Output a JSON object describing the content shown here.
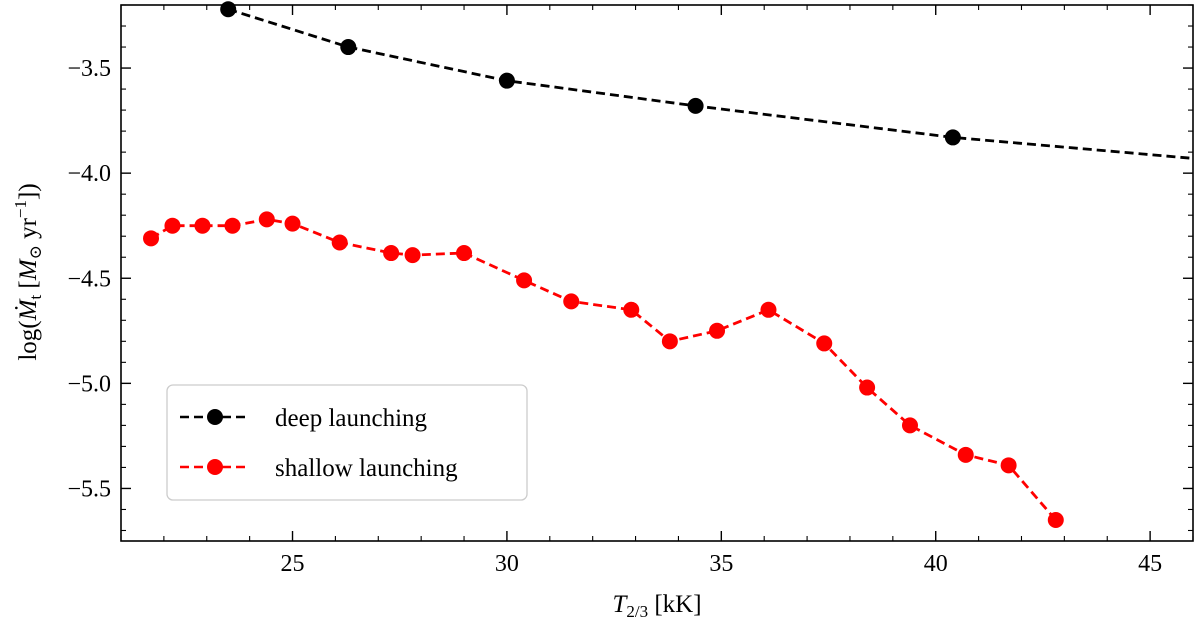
{
  "chart_data": {
    "type": "line",
    "title": "",
    "xlabel": {
      "main": "T",
      "sub": "2/3",
      "unit": " [kK]"
    },
    "ylabel": {
      "pre": "log(",
      "var": "Ṁ",
      "sub": "t",
      "unit_open": " [",
      "msun": "M",
      "sun_sub": "⊙",
      "yr": " yr",
      "exp": "−1",
      "close": "])"
    },
    "xlim": [
      21,
      46
    ],
    "ylim": [
      -5.75,
      -3.2
    ],
    "xticks": [
      25,
      30,
      35,
      40,
      45
    ],
    "xtick_labels": [
      "25",
      "30",
      "35",
      "40",
      "45"
    ],
    "yticks": [
      -3.5,
      -4.0,
      -4.5,
      -5.0,
      -5.5
    ],
    "ytick_labels": [
      "−3.5",
      "−4.0",
      "−4.5",
      "−5.0",
      "−5.5"
    ],
    "legend_position": "lower-left",
    "series": [
      {
        "name": "deep launching",
        "color": "#000000",
        "x": [
          23.5,
          26.3,
          30.0,
          34.4,
          40.4
        ],
        "y": [
          -3.22,
          -3.4,
          -3.56,
          -3.68,
          -3.83
        ],
        "line_extension": {
          "x": [
            23.5,
            26.3,
            30.0,
            34.4,
            40.4,
            46.0
          ],
          "y": [
            -3.22,
            -3.4,
            -3.56,
            -3.68,
            -3.83,
            -3.93
          ]
        }
      },
      {
        "name": "shallow launching",
        "color": "#ff0000",
        "x": [
          21.7,
          22.2,
          22.9,
          23.6,
          24.4,
          25.0,
          26.1,
          27.3,
          27.8,
          29.0,
          30.4,
          31.5,
          32.9,
          33.8,
          34.9,
          36.1,
          37.4,
          38.4,
          39.4,
          40.7,
          41.7,
          42.8
        ],
        "y": [
          -4.31,
          -4.25,
          -4.25,
          -4.25,
          -4.22,
          -4.24,
          -4.33,
          -4.38,
          -4.39,
          -4.38,
          -4.51,
          -4.61,
          -4.65,
          -4.8,
          -4.75,
          -4.65,
          -4.81,
          -5.02,
          -5.2,
          -5.34,
          -5.39,
          -5.65
        ]
      }
    ]
  }
}
